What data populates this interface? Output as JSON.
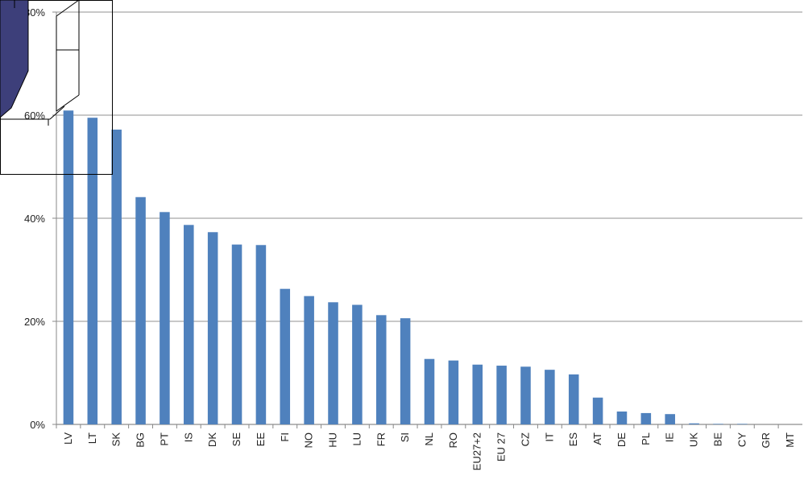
{
  "chart_data": {
    "type": "bar",
    "categories": [
      "LV",
      "LT",
      "SK",
      "BG",
      "PT",
      "IS",
      "DK",
      "SE",
      "EE",
      "FI",
      "NO",
      "HU",
      "LU",
      "FR",
      "SI",
      "NL",
      "RO",
      "EU27+2",
      "EU 27",
      "CZ",
      "IT",
      "ES",
      "AT",
      "DE",
      "PL",
      "IE",
      "UK",
      "BE",
      "CY",
      "GR",
      "MT"
    ],
    "values": [
      60.9,
      59.5,
      57.2,
      44.1,
      41.2,
      38.7,
      37.3,
      34.9,
      34.8,
      26.3,
      24.9,
      23.7,
      23.2,
      21.2,
      20.6,
      12.7,
      12.4,
      11.6,
      11.4,
      11.2,
      10.6,
      9.7,
      5.2,
      2.5,
      2.2,
      2.0,
      0.2,
      0.1,
      0.1,
      0.0,
      0.0
    ],
    "yticks": [
      "0%",
      "20%",
      "40%",
      "60%",
      "80%"
    ],
    "ylim": [
      0,
      80
    ],
    "grid": true,
    "bar_color": "#4f81bd",
    "grid_color": "#a6a6a6",
    "title": "",
    "xlabel": "",
    "ylabel": ""
  },
  "overlay": {
    "cylinder_color": "#3d3f7a",
    "frame_color": "#000000"
  }
}
